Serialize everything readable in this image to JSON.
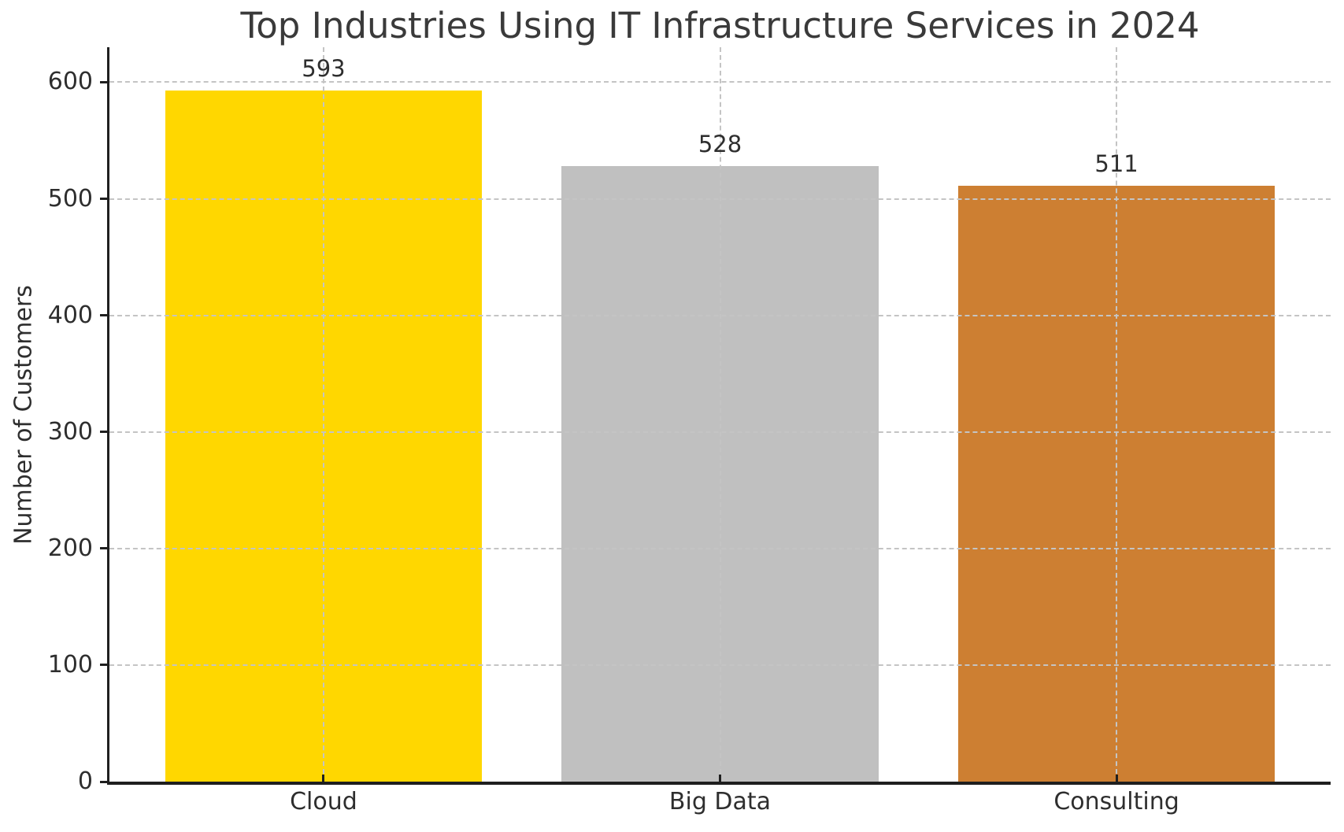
{
  "chart_data": {
    "type": "bar",
    "title": "Top Industries Using IT Infrastructure Services in 2024",
    "xlabel": "",
    "ylabel": "Number of Customers",
    "categories": [
      "Cloud",
      "Big Data",
      "Consulting"
    ],
    "values": [
      593,
      528,
      511
    ],
    "value_labels": [
      "593",
      "528",
      "511"
    ],
    "bar_colors": [
      "#FFD700",
      "#C0C0C0",
      "#CD7F32"
    ],
    "bar_color_names": [
      "gold",
      "silver",
      "bronze"
    ],
    "yticks": [
      0,
      100,
      200,
      300,
      400,
      500,
      600
    ],
    "ylim": [
      0,
      630
    ],
    "bar_width_fraction": 0.8,
    "grid": {
      "horizontal": true,
      "vertical": true,
      "style": "dashed",
      "color": "#c4c4c4"
    },
    "legend": "none",
    "background_color": "#ffffff",
    "axis_color": "#1f1f1f",
    "text_color": "#2e2e2e",
    "title_color": "#3a3a3a"
  }
}
